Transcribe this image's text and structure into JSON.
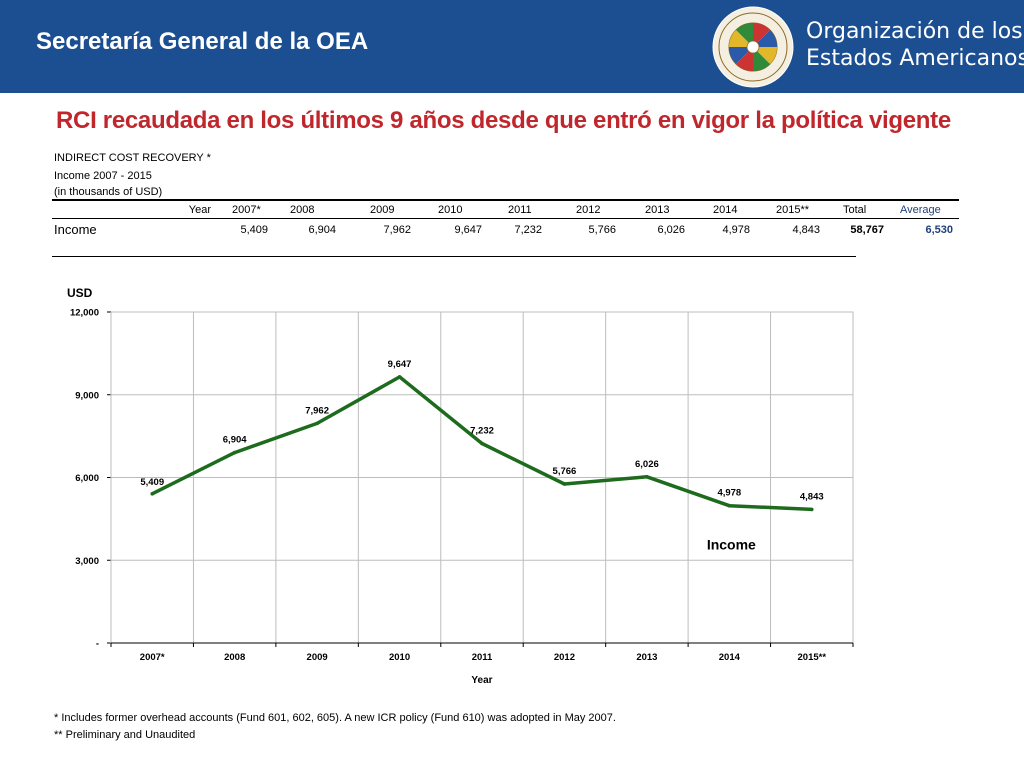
{
  "header": {
    "title": "Secretaría General de la OEA",
    "org_line1": "Organización de los",
    "org_line2": "Estados Americanos",
    "seal_text": "ORGANIZACION DE LOS ESTADOS AMERICANOS"
  },
  "headline": "RCI recaudada en los últimos 9 años desde que entró en vigor la política vigente",
  "table": {
    "title": "INDIRECT COST RECOVERY *",
    "subtitle": "Income 2007 - 2015",
    "units": "(in thousands of USD)",
    "year_header": "Year",
    "years": [
      "2007*",
      "2008",
      "2009",
      "2010",
      "2011",
      "2012",
      "2013",
      "2014",
      "2015**"
    ],
    "total_header": "Total",
    "average_header": "Average",
    "row_label": "Income",
    "values": [
      "5,409",
      "6,904",
      "7,962",
      "9,647",
      "7,232",
      "5,766",
      "6,026",
      "4,978",
      "4,843"
    ],
    "total": "58,767",
    "average": "6,530"
  },
  "chart_data": {
    "type": "line",
    "ylabel": "USD",
    "xlabel": "Year",
    "categories": [
      "2007*",
      "2008",
      "2009",
      "2010",
      "2011",
      "2012",
      "2013",
      "2014",
      "2015**"
    ],
    "series": [
      {
        "name": "Income",
        "values": [
          5409,
          6904,
          7962,
          9647,
          7232,
          5766,
          6026,
          4978,
          4843
        ]
      }
    ],
    "data_labels": [
      "5,409",
      "6,904",
      "7,962",
      "9,647",
      "7,232",
      "5,766",
      "6,026",
      "4,978",
      "4,843"
    ],
    "ylim": [
      0,
      12000
    ],
    "yticks": [
      0,
      3000,
      6000,
      9000,
      12000
    ],
    "ytick_labels": [
      "-",
      "3,000",
      "6,000",
      "9,000",
      "12,000"
    ],
    "grid": true,
    "line_color": "#1e6b1e",
    "legend_placement": "inline near last point"
  },
  "footnotes": [
    "*  Includes former overhead accounts (Fund 601, 602, 605). A new ICR policy (Fund 610) was adopted in May 2007.",
    "** Preliminary and Unaudited"
  ],
  "colors": {
    "header_bg": "#1b4f91",
    "headline": "#c0272d",
    "average_header": "#1f3f7a",
    "average_value": "#1f3f7a"
  }
}
